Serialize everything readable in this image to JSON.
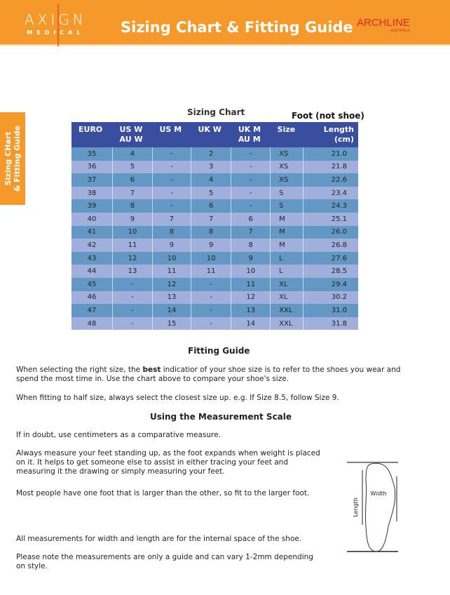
{
  "header": {
    "logo": "AXIGN",
    "logo_sub": "MEDICAL",
    "title": "Sizing Chart & Fitting Guide",
    "brand": "ARCHLINE",
    "brand_sub": "AUSTRALIA",
    "colors": {
      "header": "#f6992b",
      "table_header": "#3a4ea0",
      "row_dark": "#6498c4",
      "row_light": "#a0afdc"
    }
  },
  "side_tab": {
    "line1": "Sizing CHart",
    "line2": "& Fitting Guide"
  },
  "chart": {
    "title": "Sizing Chart",
    "note": "Foot (not shoe)",
    "columns": [
      "EURO",
      "US W\nAU W",
      "US M",
      "UK W",
      "UK M\nAU M",
      "Size",
      "Length\n(cm)"
    ],
    "rows": [
      [
        "35",
        "4",
        "-",
        "2",
        "-",
        "XS",
        "21.0"
      ],
      [
        "36",
        "5",
        "-",
        "3",
        "-",
        "XS",
        "21.8"
      ],
      [
        "37",
        "6",
        "-",
        "4",
        "-",
        "XS",
        "22.6"
      ],
      [
        "38",
        "7",
        "-",
        "5",
        "-",
        "S",
        "23.4"
      ],
      [
        "39",
        "8",
        "-",
        "6",
        "-",
        "S",
        "24.3"
      ],
      [
        "40",
        "9",
        "7",
        "7",
        "6",
        "M",
        "25.1"
      ],
      [
        "41",
        "10",
        "8",
        "8",
        "7",
        "M",
        "26.0"
      ],
      [
        "42",
        "11",
        "9",
        "9",
        "8",
        "M",
        "26.8"
      ],
      [
        "43",
        "12",
        "10",
        "10",
        "9",
        "L",
        "27.6"
      ],
      [
        "44",
        "13",
        "11",
        "11",
        "10",
        "L",
        "28.5"
      ],
      [
        "45",
        "-",
        "12",
        "-",
        "11",
        "XL",
        "29.4"
      ],
      [
        "46",
        "-",
        "13",
        "-",
        "12",
        "XL",
        "30.2"
      ],
      [
        "47",
        "-",
        "14",
        "-",
        "13",
        "XXL",
        "31.0"
      ],
      [
        "48",
        "-",
        "15",
        "-",
        "14",
        "XXL",
        "31.8"
      ]
    ]
  },
  "fitting": {
    "title": "Fitting Guide",
    "p1_a": "When selecting the right size, the ",
    "p1_b": "best",
    "p1_c": " indicatior of your shoe size is to refer to the shoes you wear and spend the most time in. Use the chart above to compare your shoe's size.",
    "p2": "When fitting to half size, always select the closest size up. e.g. If Size 8.5, follow Size 9."
  },
  "measure": {
    "title": "Using the Measurement Scale",
    "p1": "If in doubt, use centimeters as a comparative measure.",
    "p2": "Always measure your feet standing up, as the foot expands when weight is placed on it. It helps to get someone else to assist in either tracing your feet and measuring it the drawing or simply measuring your feet.",
    "p3": "Most people have one foot that is larger than the other, so fit to the larger foot.",
    "p4": "All measurements for width and length are for the internal space of the shoe.",
    "p5": "Please note the measurements are only a guide and can vary 1-2mm depending on style.",
    "diagram_length": "Length",
    "diagram_width": "Width"
  }
}
